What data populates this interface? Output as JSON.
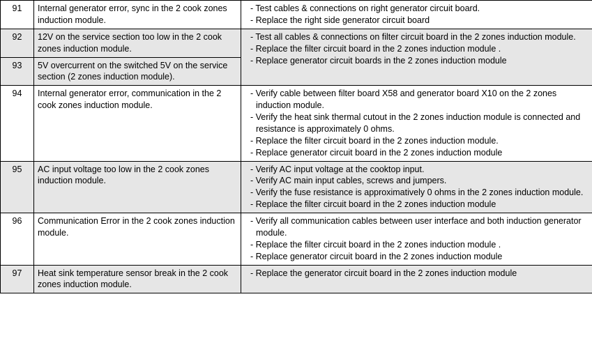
{
  "rows": [
    {
      "code": "91",
      "shaded": false,
      "desc": "Internal generator error, sync in the 2 cook zones induction module.",
      "actions": [
        "- Test cables & connections on right generator circuit board.",
        "- Replace the right side generator circuit board"
      ],
      "rowspan": 1
    },
    {
      "code": "92",
      "shaded": true,
      "desc": "12V on the service section too low in the 2 cook zones induction module.",
      "actions": [
        "- Test all cables & connections on filter circuit board in the 2 zones induction module.",
        "- Replace the filter circuit board in the 2 zones induction module .",
        "- Replace generator circuit boards in the 2 zones induction module"
      ],
      "rowspan": 2
    },
    {
      "code": "93",
      "shaded": true,
      "desc": "5V overcurrent on the switched 5V on the service section (2 zones induction module).",
      "actions": null,
      "rowspan": 0
    },
    {
      "code": "94",
      "shaded": false,
      "desc": "Internal generator error, communication in the 2 cook zones induction module.",
      "actions": [
        "- Verify cable between filter board X58 and generator board X10 on the 2 zones induction module.",
        "- Verify the heat sink thermal cutout in the 2 zones induction module is connected and resistance is approximately 0 ohms.",
        "- Replace the filter circuit board in the 2 zones induction module.",
        "- Replace generator circuit board in the 2 zones induction module"
      ],
      "rowspan": 1
    },
    {
      "code": "95",
      "shaded": true,
      "desc": "AC input voltage too low in the 2 cook zones induction module.",
      "actions": [
        "- Verify AC input voltage at the cooktop input.",
        "- Verify AC main input cables, screws and jumpers.",
        "- Verify the fuse resistance is approximatively 0 ohms in the 2 zones induction module.",
        "- Replace the filter circuit board in the 2 zones induction module"
      ],
      "rowspan": 1
    },
    {
      "code": "96",
      "shaded": false,
      "desc": "Communication Error in the 2 cook zones induction module.",
      "actions": [
        "- Verify all communication cables between user interface and both induction generator module.",
        "- Replace the filter circuit board in the 2 zones induction module .",
        "- Replace generator circuit board in the 2 zones induction module"
      ],
      "rowspan": 1
    },
    {
      "code": "97",
      "shaded": true,
      "desc": "Heat sink temperature sensor break in the 2 cook zones induction module.",
      "actions": [
        "- Replace the generator circuit board in the 2 zones induction module"
      ],
      "rowspan": 1
    }
  ]
}
